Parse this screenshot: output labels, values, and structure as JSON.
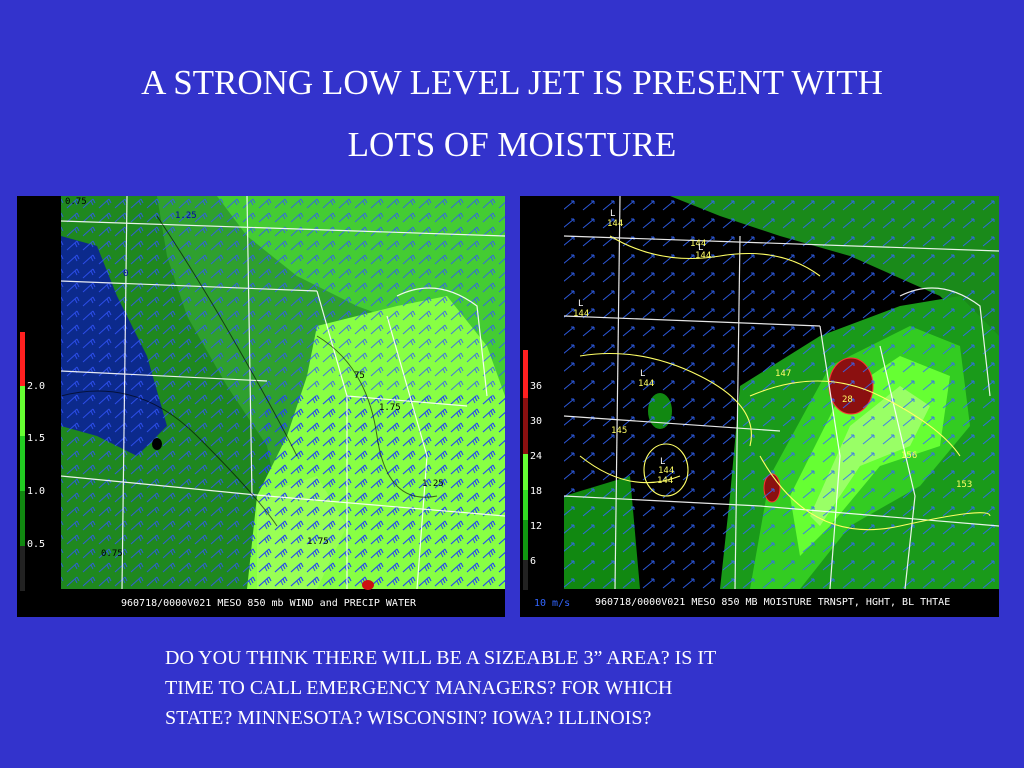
{
  "slide": {
    "title_line1": "A STRONG LOW LEVEL JET IS PRESENT WITH",
    "title_line2": "LOTS OF MOISTURE",
    "caption_line1": "DO YOU THINK THERE WILL BE A SIZEABLE 3” AREA?  IS IT",
    "caption_line2": "TIME TO CALL EMERGENCY MANAGERS? FOR WHICH",
    "caption_line3": "STATE? MINNESOTA? WISCONSIN? IOWA? ILLINOIS?"
  },
  "left_panel": {
    "footer": "960718/0000V021 MESO 850 mb WIND and PRECIP WATER",
    "scale_ticks": [
      "2.0",
      "1.5",
      "1.0",
      "0.5"
    ],
    "scale_colors": [
      "#ff2020",
      "#66ff33",
      "#22cc22",
      "#118811",
      "#000000"
    ],
    "contour_labels": [
      "0.75",
      "1.25",
      "0",
      "75",
      "0.75",
      "1.25",
      "1.75",
      "1.75"
    ]
  },
  "right_panel": {
    "footer": "960718/0000V021 MESO 850 MB MOISTURE TRNSPT, HGHT, BL THTAE",
    "wind_scale": "10 m/s",
    "scale_ticks": [
      "36",
      "30",
      "24",
      "18",
      "12",
      "6"
    ],
    "scale_colors": [
      "#ff2020",
      "#8b1010",
      "#66ff33",
      "#33dd22",
      "#119911",
      "#000000"
    ],
    "height_labels": [
      "144",
      "144",
      "144",
      "144",
      "144",
      "145",
      "144",
      "144",
      "147",
      "156",
      "153",
      "28"
    ],
    "low_marker": "L"
  },
  "colors": {
    "background": "#3333cc",
    "text": "#ffffff",
    "contour_yellow": "#ffff66",
    "wind_blue": "#3366ff"
  }
}
